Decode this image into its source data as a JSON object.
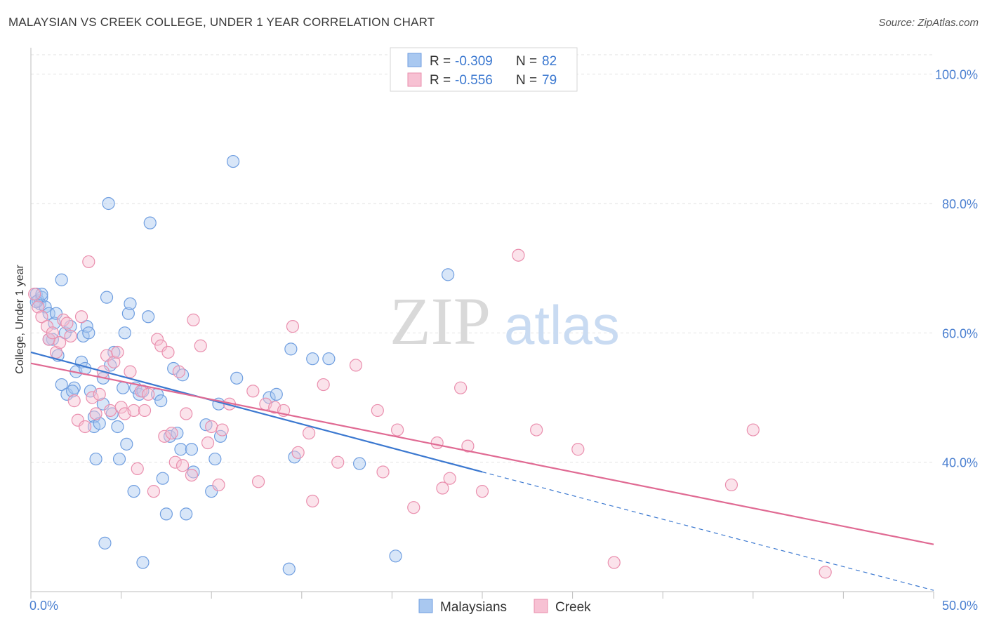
{
  "header": {
    "title": "MALAYSIAN VS CREEK COLLEGE, UNDER 1 YEAR CORRELATION CHART",
    "source": "Source: ZipAtlas.com"
  },
  "watermark": {
    "zip": "ZIP",
    "atlas": "atlas"
  },
  "legend": {
    "rows": [
      {
        "r_label": "R = ",
        "r_value": "-0.309",
        "n_label": "N = ",
        "n_value": "82"
      },
      {
        "r_label": "R = ",
        "r_value": "-0.556",
        "n_label": "N = ",
        "n_value": "79"
      }
    ]
  },
  "chart_data": {
    "type": "scatter",
    "title": "MALAYSIAN VS CREEK COLLEGE, UNDER 1 YEAR CORRELATION CHART",
    "xlabel": "",
    "ylabel": "College, Under 1 year",
    "xlim": [
      0,
      50
    ],
    "ylim": [
      20,
      103
    ],
    "x_tick_labels": [
      "0.0%",
      "50.0%"
    ],
    "y_ticks": [
      40,
      60,
      80,
      100
    ],
    "y_tick_labels": [
      "40.0%",
      "60.0%",
      "80.0%",
      "100.0%"
    ],
    "grid": true,
    "legend_position": "bottom-center",
    "series": [
      {
        "name": "Malaysians",
        "color": "#a9c8f0",
        "edge": "#6f9ee0",
        "line_color": "#3b78d0",
        "trend": {
          "x": [
            0,
            25
          ],
          "y": [
            57.0,
            38.5
          ],
          "dashed_to": [
            50,
            20.2
          ]
        },
        "points": [
          [
            0.3,
            66
          ],
          [
            0.4,
            65
          ],
          [
            0.5,
            64.5
          ],
          [
            0.6,
            65.5
          ],
          [
            0.8,
            64
          ],
          [
            1.0,
            63
          ],
          [
            1.2,
            59
          ],
          [
            1.3,
            61.5
          ],
          [
            1.5,
            56.5
          ],
          [
            1.4,
            63
          ],
          [
            1.7,
            68.2
          ],
          [
            1.9,
            60
          ],
          [
            1.7,
            52
          ],
          [
            2.0,
            50.5
          ],
          [
            2.2,
            61
          ],
          [
            2.4,
            51.5
          ],
          [
            2.5,
            54
          ],
          [
            2.8,
            55.5
          ],
          [
            3.0,
            54.5
          ],
          [
            2.9,
            59.5
          ],
          [
            3.1,
            61
          ],
          [
            3.3,
            51
          ],
          [
            3.5,
            47
          ],
          [
            3.5,
            45.5
          ],
          [
            3.6,
            40.5
          ],
          [
            3.8,
            46
          ],
          [
            4.0,
            49
          ],
          [
            4.1,
            27.5
          ],
          [
            4.2,
            65.5
          ],
          [
            4.3,
            80
          ],
          [
            4.4,
            55
          ],
          [
            4.5,
            47.5
          ],
          [
            4.6,
            57
          ],
          [
            4.8,
            45.5
          ],
          [
            4.9,
            40.5
          ],
          [
            5.1,
            51.5
          ],
          [
            5.2,
            60
          ],
          [
            5.3,
            42.8
          ],
          [
            5.4,
            63
          ],
          [
            5.5,
            64.5
          ],
          [
            5.7,
            35.5
          ],
          [
            5.8,
            51.5
          ],
          [
            6.0,
            50.5
          ],
          [
            6.2,
            24.5
          ],
          [
            6.5,
            62.5
          ],
          [
            6.6,
            77
          ],
          [
            7.0,
            50.5
          ],
          [
            7.2,
            49.5
          ],
          [
            7.3,
            37.5
          ],
          [
            7.5,
            32
          ],
          [
            7.7,
            44
          ],
          [
            7.9,
            54.5
          ],
          [
            8.1,
            44.5
          ],
          [
            8.3,
            42
          ],
          [
            8.4,
            53.5
          ],
          [
            8.6,
            32
          ],
          [
            8.9,
            42
          ],
          [
            9.0,
            38.5
          ],
          [
            9.7,
            45.8
          ],
          [
            10.0,
            35.5
          ],
          [
            10.2,
            40.5
          ],
          [
            10.5,
            44
          ],
          [
            10.4,
            49
          ],
          [
            11.2,
            86.5
          ],
          [
            11.4,
            53
          ],
          [
            13.2,
            50
          ],
          [
            13.6,
            50.5
          ],
          [
            14.3,
            23.5
          ],
          [
            14.4,
            57.5
          ],
          [
            14.6,
            40.8
          ],
          [
            15.6,
            56
          ],
          [
            16.5,
            56
          ],
          [
            18.2,
            39.8
          ],
          [
            20.2,
            25.5
          ],
          [
            23.1,
            69
          ],
          [
            0.3,
            64.8
          ],
          [
            0.6,
            66
          ],
          [
            1.0,
            59
          ],
          [
            2.3,
            51
          ],
          [
            3.2,
            60
          ],
          [
            4.0,
            53
          ],
          [
            6.2,
            51
          ]
        ]
      },
      {
        "name": "Creek",
        "color": "#f7c1d3",
        "edge": "#ea8fae",
        "line_color": "#e06a93",
        "trend": {
          "x": [
            0,
            50
          ],
          "y": [
            55.3,
            27.3
          ]
        },
        "points": [
          [
            0.2,
            66
          ],
          [
            0.4,
            64
          ],
          [
            0.6,
            62.5
          ],
          [
            0.9,
            61
          ],
          [
            1.0,
            59
          ],
          [
            1.2,
            60
          ],
          [
            1.4,
            57
          ],
          [
            1.6,
            58.5
          ],
          [
            1.8,
            62
          ],
          [
            2.0,
            61.5
          ],
          [
            2.2,
            59.5
          ],
          [
            2.4,
            49.5
          ],
          [
            2.6,
            46.5
          ],
          [
            2.8,
            62.5
          ],
          [
            3.0,
            45.5
          ],
          [
            3.2,
            71
          ],
          [
            3.4,
            50
          ],
          [
            3.6,
            47.5
          ],
          [
            3.8,
            50.5
          ],
          [
            4.0,
            54
          ],
          [
            4.2,
            56.5
          ],
          [
            4.4,
            48
          ],
          [
            4.6,
            55.5
          ],
          [
            4.8,
            57
          ],
          [
            5.0,
            48.5
          ],
          [
            5.2,
            47.5
          ],
          [
            5.5,
            54
          ],
          [
            5.7,
            48
          ],
          [
            5.9,
            39
          ],
          [
            6.1,
            51
          ],
          [
            6.3,
            48
          ],
          [
            6.5,
            50.5
          ],
          [
            6.8,
            35.5
          ],
          [
            7.0,
            59
          ],
          [
            7.2,
            58
          ],
          [
            7.4,
            44
          ],
          [
            7.6,
            57
          ],
          [
            7.8,
            44.5
          ],
          [
            8.0,
            40
          ],
          [
            8.2,
            54
          ],
          [
            8.4,
            39.5
          ],
          [
            8.6,
            47.5
          ],
          [
            8.9,
            38
          ],
          [
            9.0,
            62
          ],
          [
            9.4,
            58
          ],
          [
            9.8,
            43
          ],
          [
            10.0,
            45.5
          ],
          [
            10.4,
            36.5
          ],
          [
            10.6,
            45
          ],
          [
            11.0,
            49
          ],
          [
            12.3,
            51
          ],
          [
            12.6,
            37
          ],
          [
            13.0,
            49
          ],
          [
            13.5,
            48.5
          ],
          [
            14.0,
            48
          ],
          [
            14.5,
            61
          ],
          [
            14.8,
            41.5
          ],
          [
            15.4,
            44.5
          ],
          [
            15.6,
            34
          ],
          [
            16.2,
            52
          ],
          [
            17.0,
            40
          ],
          [
            18.0,
            55
          ],
          [
            19.2,
            48
          ],
          [
            19.5,
            38.5
          ],
          [
            20.3,
            45
          ],
          [
            21.2,
            33
          ],
          [
            22.5,
            43
          ],
          [
            23.2,
            37.5
          ],
          [
            23.8,
            51.5
          ],
          [
            24.2,
            42.5
          ],
          [
            25.0,
            35.5
          ],
          [
            27.0,
            72
          ],
          [
            28.0,
            45
          ],
          [
            30.3,
            42
          ],
          [
            32.3,
            24.5
          ],
          [
            38.8,
            36.5
          ],
          [
            40.0,
            45
          ],
          [
            44.0,
            23
          ],
          [
            22.8,
            36
          ]
        ]
      }
    ]
  }
}
